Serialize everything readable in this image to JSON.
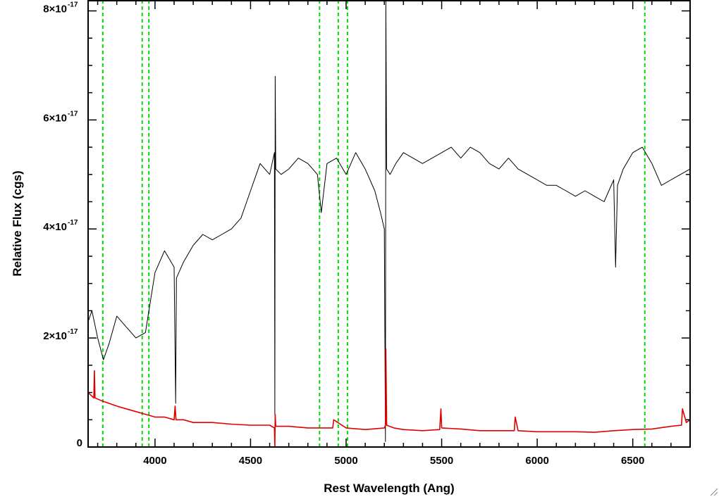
{
  "chart_data": {
    "type": "line",
    "title": "",
    "xlabel": "Rest Wavelength (Ang)",
    "ylabel": "Relative Flux (cgs)",
    "xlim": [
      3650,
      6800
    ],
    "ylim": [
      0,
      8.2e-17
    ],
    "x_ticks": [
      4000,
      4500,
      5000,
      5500,
      6000,
      6500
    ],
    "x_tick_labels": [
      "4000",
      "4500",
      "5000",
      "5500",
      "6000",
      "6500"
    ],
    "y_ticks": [
      {
        "value": 0,
        "label": "0",
        "exponent": ""
      },
      {
        "value": 2e-17,
        "label": "2×10",
        "exponent": "-17"
      },
      {
        "value": 4e-17,
        "label": "4×10",
        "exponent": "-17"
      },
      {
        "value": 6e-17,
        "label": "6×10",
        "exponent": "-17"
      },
      {
        "value": 8e-17,
        "label": "8×10",
        "exponent": "-17"
      }
    ],
    "grid": false,
    "colors": {
      "spectrum": "#000000",
      "error": "#e00000",
      "lines": "#00dd00"
    },
    "reference_lines": [
      3727,
      3933,
      3968,
      4861,
      4959,
      5007,
      6563
    ],
    "series": [
      {
        "key": "spectrum",
        "x": [
          3650,
          3670,
          3700,
          3730,
          3760,
          3800,
          3850,
          3900,
          3950,
          4000,
          4050,
          4100,
          4108,
          4112,
          4150,
          4200,
          4250,
          4300,
          4350,
          4400,
          4450,
          4500,
          4550,
          4600,
          4625,
          4627,
          4629,
          4632,
          4660,
          4700,
          4750,
          4800,
          4850,
          4870,
          4900,
          4950,
          5000,
          5050,
          5100,
          5150,
          5180,
          5200,
          5206,
          5208,
          5212,
          5230,
          5260,
          5300,
          5350,
          5400,
          5450,
          5500,
          5550,
          5600,
          5650,
          5700,
          5750,
          5800,
          5850,
          5900,
          5950,
          6000,
          6050,
          6100,
          6150,
          6200,
          6250,
          6300,
          6350,
          6400,
          6410,
          6420,
          6450,
          6500,
          6550,
          6600,
          6650,
          6700,
          6750,
          6800
        ],
        "y": [
          2.3e-17,
          2.5e-17,
          2e-17,
          1.6e-17,
          1.9e-17,
          2.4e-17,
          2.2e-17,
          2e-17,
          2.1e-17,
          3.2e-17,
          3.6e-17,
          3.3e-17,
          8e-18,
          3.1e-17,
          3.4e-17,
          3.7e-17,
          3.9e-17,
          3.8e-17,
          3.9e-17,
          4e-17,
          4.2e-17,
          4.7e-17,
          5.2e-17,
          5e-17,
          5.4e-17,
          6e-18,
          6.8e-17,
          5.1e-17,
          5e-17,
          5.1e-17,
          5.3e-17,
          5.2e-17,
          5e-17,
          4.3e-17,
          5.2e-17,
          5.3e-17,
          5e-17,
          5.4e-17,
          5.1e-17,
          4.7e-17,
          4.3e-17,
          4e-17,
          1e-18,
          8.2e-17,
          5.1e-17,
          5e-17,
          5.2e-17,
          5.4e-17,
          5.3e-17,
          5.2e-17,
          5.3e-17,
          5.4e-17,
          5.5e-17,
          5.3e-17,
          5.5e-17,
          5.4e-17,
          5.2e-17,
          5.1e-17,
          5.3e-17,
          5.1e-17,
          5e-17,
          4.9e-17,
          4.8e-17,
          4.8e-17,
          4.7e-17,
          4.6e-17,
          4.7e-17,
          4.6e-17,
          4.5e-17,
          4.9e-17,
          3.3e-17,
          4.8e-17,
          5.1e-17,
          5.4e-17,
          5.5e-17,
          5.2e-17,
          4.8e-17,
          4.9e-17,
          5e-17,
          5.1e-17
        ]
      },
      {
        "key": "error",
        "x": [
          3650,
          3680,
          3683,
          3686,
          3720,
          3760,
          3800,
          3850,
          3900,
          3950,
          4000,
          4050,
          4100,
          4105,
          4110,
          4150,
          4200,
          4300,
          4400,
          4500,
          4600,
          4625,
          4627,
          4629,
          4632,
          4700,
          4800,
          4900,
          4930,
          4935,
          5000,
          5100,
          5200,
          5206,
          5208,
          5212,
          5250,
          5300,
          5400,
          5490,
          5496,
          5500,
          5600,
          5700,
          5800,
          5880,
          5885,
          5900,
          6000,
          6100,
          6200,
          6300,
          6400,
          6500,
          6600,
          6700,
          6755,
          6760,
          6780,
          6800
        ],
        "y": [
          1e-17,
          9e-18,
          1.4e-17,
          9e-18,
          8.5e-18,
          8e-18,
          7.5e-18,
          7e-18,
          6.5e-18,
          6e-18,
          5.5e-18,
          5.5e-18,
          5e-18,
          7.5e-18,
          5e-18,
          5e-18,
          4.5e-18,
          4.5e-18,
          4.2e-18,
          4e-18,
          4e-18,
          3.5e-18,
          0.0,
          6e-18,
          3.8e-18,
          3.8e-18,
          3.5e-18,
          3.5e-18,
          3.5e-18,
          5e-18,
          3.5e-18,
          3.2e-18,
          3.5e-18,
          4e-18,
          1.8e-17,
          4e-18,
          3.5e-18,
          3.2e-18,
          3e-18,
          3.2e-18,
          7e-18,
          3.5e-18,
          3.3e-18,
          3e-18,
          3e-18,
          3e-18,
          5.5e-18,
          3e-18,
          2.8e-18,
          2.8e-18,
          2.8e-18,
          2.7e-18,
          3e-18,
          3.2e-18,
          3.3e-18,
          3.8e-18,
          4e-18,
          7e-18,
          4.5e-18,
          5e-18
        ]
      }
    ]
  }
}
